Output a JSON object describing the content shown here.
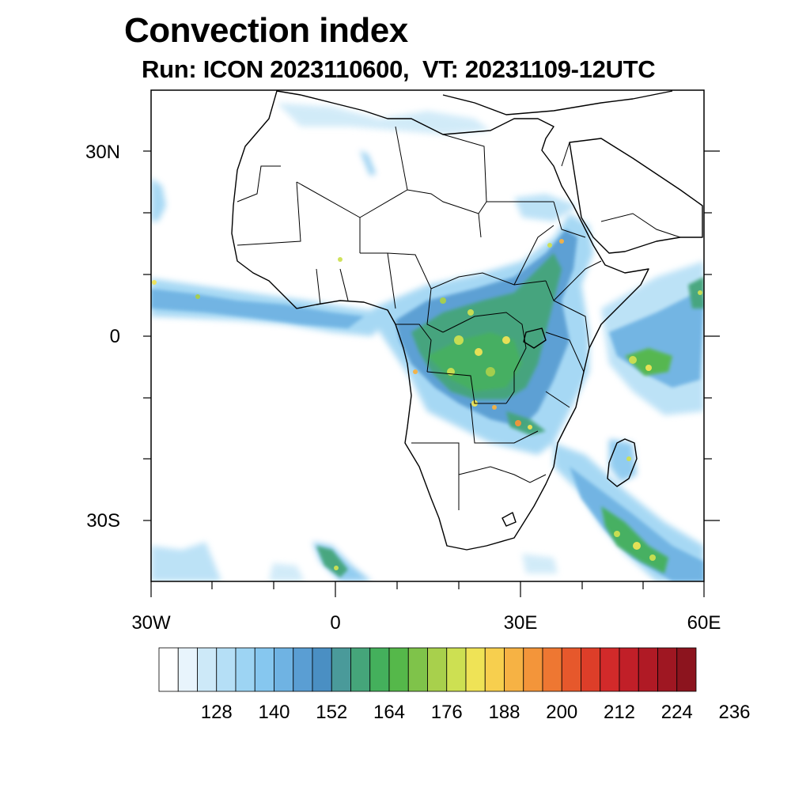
{
  "title": "Convection index",
  "subtitle": "Run: ICON 2023110600,  VT: 20231109-12UTC",
  "axes": {
    "lat_labels": [
      "30N",
      "0",
      "30S"
    ],
    "lon_labels": [
      "30W",
      "0",
      "30E",
      "60E"
    ]
  },
  "colorbar": {
    "labels": [
      "128",
      "140",
      "152",
      "164",
      "176",
      "188",
      "200",
      "212",
      "224",
      "236"
    ],
    "colors": [
      "#ffffff",
      "#e8f4fc",
      "#cde9f8",
      "#b5dff6",
      "#9dd4f3",
      "#86c7ef",
      "#6fb3e3",
      "#5a9ed3",
      "#4a8fc3",
      "#4a9a9a",
      "#45a57a",
      "#44b05c",
      "#55b84a",
      "#7fc34a",
      "#a8d04c",
      "#cde052",
      "#efe356",
      "#f7cf4e",
      "#f6b244",
      "#f3953a",
      "#ee7732",
      "#e6582c",
      "#dd3e29",
      "#d22a2a",
      "#c11f28",
      "#b01a25",
      "#9f1722",
      "#8c141e"
    ]
  },
  "map": {
    "lon_range": [
      -30,
      60
    ],
    "lat_range": [
      -40,
      40
    ],
    "variable": "Convection index"
  }
}
